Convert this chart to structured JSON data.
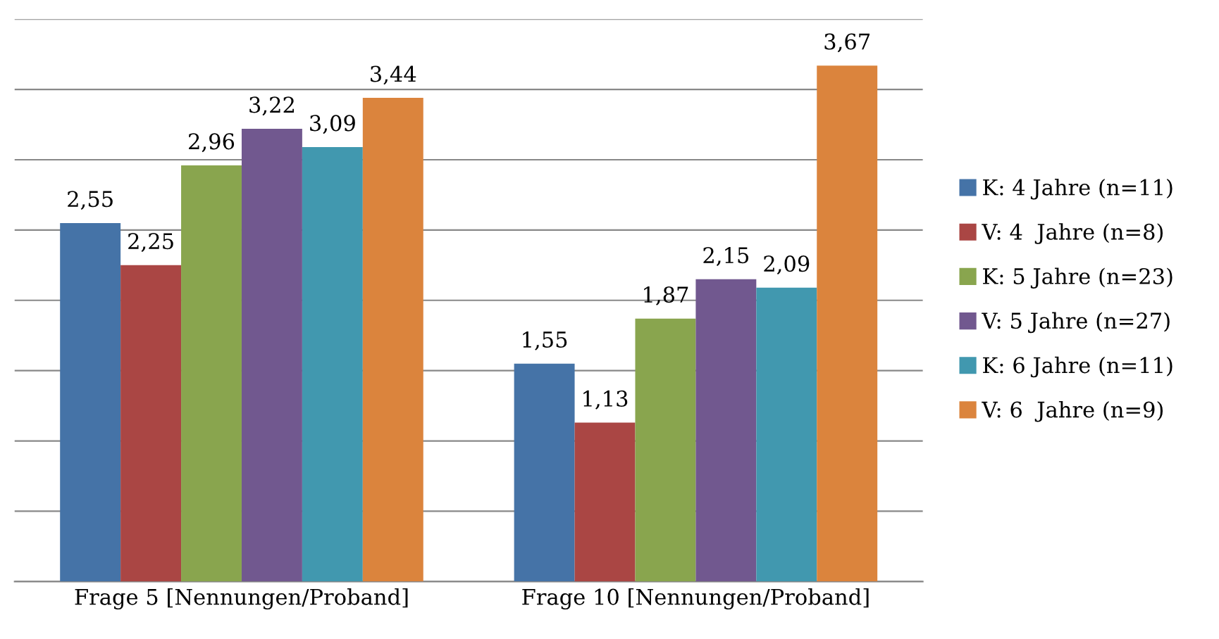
{
  "chart_data": {
    "type": "bar",
    "categories": [
      "Frage 5 [Nennungen/Proband]",
      "Frage 10 [Nennungen/Proband]"
    ],
    "series": [
      {
        "name": "K: 4 Jahre (n=11)",
        "color": "#4573a7",
        "values": [
          2.55,
          1.55
        ],
        "value_labels": [
          "2,55",
          "1,55"
        ]
      },
      {
        "name": "V: 4  Jahre (n=8)",
        "color": "#aa4644",
        "values": [
          2.25,
          1.13
        ],
        "value_labels": [
          "2,25",
          "1,13"
        ]
      },
      {
        "name": "K: 5 Jahre (n=23)",
        "color": "#89a54e",
        "values": [
          2.96,
          1.87
        ],
        "value_labels": [
          "2,96",
          "1,87"
        ]
      },
      {
        "name": "V: 5 Jahre (n=27)",
        "color": "#71588f",
        "values": [
          3.22,
          2.15
        ],
        "value_labels": [
          "3,22",
          "2,15"
        ]
      },
      {
        "name": "K: 6 Jahre (n=11)",
        "color": "#4198af",
        "values": [
          3.09,
          2.09
        ],
        "value_labels": [
          "3,09",
          "2,09"
        ]
      },
      {
        "name": "V: 6  Jahre (n=9)",
        "color": "#db843d",
        "values": [
          3.44,
          3.67
        ],
        "value_labels": [
          "3,44",
          "3,67"
        ]
      }
    ],
    "tick_labels": "x",
    "grid": "y",
    "legend": "right"
  }
}
